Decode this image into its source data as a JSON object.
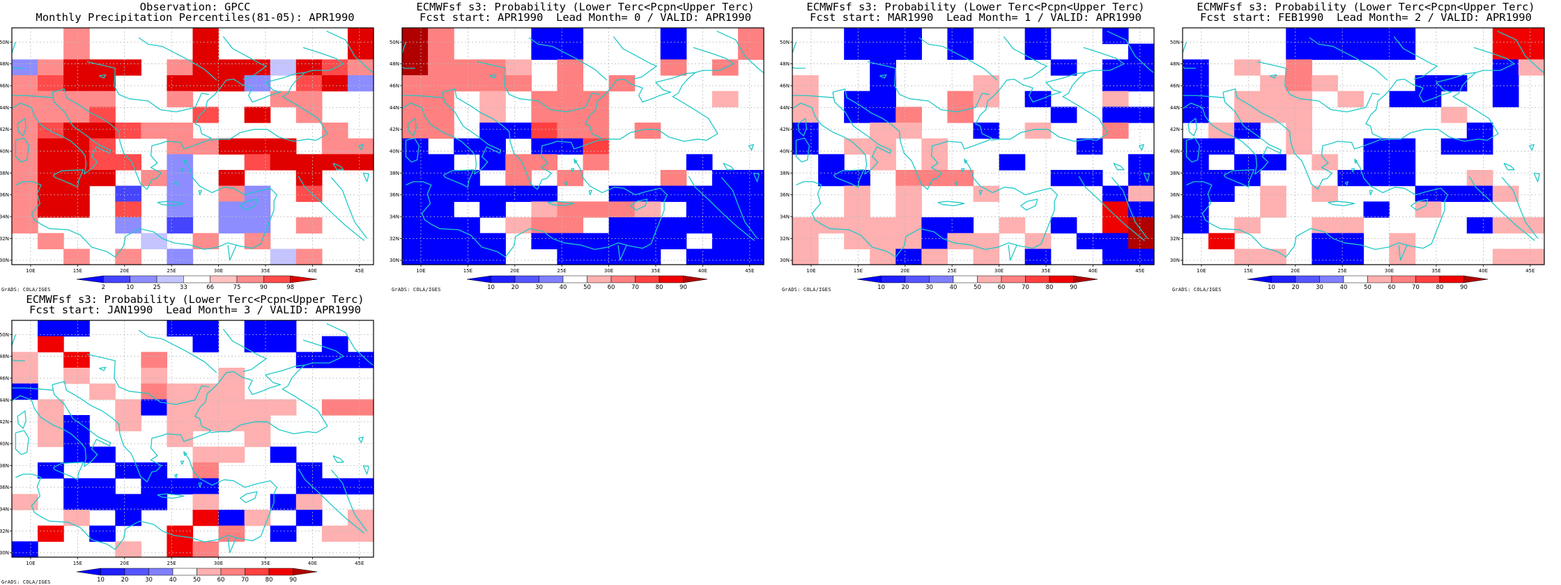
{
  "panels": [
    {
      "title1": "Observation: GPCC",
      "title2": "Monthly Precipitation Percentiles(81-05): APR1990",
      "footer": "GrADS: COLA/IGES",
      "colorbar": {
        "labels": [
          "2",
          "10",
          "25",
          "33",
          "66",
          "75",
          "90",
          "98"
        ],
        "colors": [
          "#0b0bff",
          "#4545ff",
          "#8d8dff",
          "#c4c4ff",
          "#ffffff",
          "#ffc2c2",
          "#ff8c8c",
          "#ff4b4b",
          "#e00000"
        ]
      },
      "grid_pattern": [
        "..4....6.....6",
        "..4....6.....6",
        "34666.4667a654",
        "4566..667b.563",
        "4444..4...44..",
        "4445...5.6.4..",
        "4566544.....4.",
        "4665..44766.44",
        "46655.3..56666",
        "4666.43.6..6..",
        "466.2.b.43.5..",
        "466.5.3.33....",
        "4...b.c.33.4..",
        ".4...a.4.4....",
        "..4.4.b...a4..."
      ]
    },
    {
      "title1": "ECMWFsf s3: Probability (Lower Terc<Pcpn<Upper Terc)",
      "title2": "Fcst start: APR1990  Lead Month= 0 / VALID: APR1990",
      "footer": "GrADS: COLA/IGES",
      "colorbar": {
        "labels": [
          "10",
          "20",
          "30",
          "40",
          "50",
          "60",
          "70",
          "80",
          "90"
        ],
        "colors": [
          "#0000ff",
          "#2020ff",
          "#5555ff",
          "#8080ff",
          "#ffffff",
          "#ffb0b0",
          "#ff8080",
          "#ff4040",
          "#f00000",
          "#b00000"
        ]
      },
      "grid_pattern": [
        "b4...aa...a..4",
        "b4...aa...a..4",
        "74443.4...4.4.",
        "44444.4.4.....",
        "44.3.444....3.",
        "44.3.444......",
        "44.aa544.4....",
        "a.aa.aa5......",
        "aa.a44.4...a..",
        "aaa.4.4...4.aa",
        "aaaaaa..aaaaaa",
        "aa.a.34443.aaa",
        "aaa.344.aaaaaa",
        "aaaa.aaaaaa.aa",
        "aaaa..aaaa.aaa"
      ]
    },
    {
      "title1": "ECMWFsf s3: Probability (Lower Terc<Pcpn<Upper Terc)",
      "title2": "Fcst start: MAR1990  Lead Month= 1 / VALID: APR1990",
      "footer": "GrADS: COLA/IGES",
      "colorbar": {
        "labels": [
          "10",
          "20",
          "30",
          "40",
          "50",
          "60",
          "70",
          "80",
          "90"
        ],
        "colors": [
          "#0000ff",
          "#2020ff",
          "#5555ff",
          "#8080ff",
          "#ffffff",
          "#ffb0b0",
          "#ff8080",
          "#ff4040",
          "#f00000",
          "#b00000"
        ]
      },
      "grid_pattern": [
        "..aaa.a..a..a.",
        "..aaa.a..a...a",
        "...a......a.aa",
        "3..a...3....aa",
        "3.aa..43.a..3.",
        "3.aa4.4...a.aa",
        "a..33..a.3..4.",
        "a.33.3.....a..",
        ".a.3.3..a....a",
        ".aa.444...aa.a",
        "..3.3..3....a3",
        "..3.3.......6a",
        "33333aa.3.a.6c",
        "3.333a33.3.aac",
        "3..3a3.3.a..aa"
      ]
    },
    {
      "title1": "ECMWFsf s3: Probability (Lower Terc<Pcpn<Upper Terc)",
      "title2": "Fcst start: FEB1990  Lead Month= 2 / VALID: APR1990",
      "footer": "GrADS: COLA/IGES",
      "colorbar": {
        "labels": [
          "10",
          "20",
          "30",
          "40",
          "50",
          "60",
          "70",
          "80",
          "90"
        ],
        "colors": [
          "#0000ff",
          "#2020ff",
          "#5555ff",
          "#8080ff",
          "#ffffff",
          "#ffb0b0",
          "#ff8080",
          "#ff4040",
          "#f00000",
          "#b00000"
        ]
      },
      "grid_pattern": [
        "....aaaaa...66",
        "....aaaaa...66",
        "a.3.4.......a3",
        "a..343...aa.a.",
        "a.333.3.aa..a.",
        "a.333.....3...",
        ".3a.3......a..",
        "aa..3..aa.aa..",
        "a.aa.3.aa.....",
        "aaa...aaa..3..",
        "aa.3.3...aaa3.",
        "a..3...a.3....",
        "a.3..33....a33",
        ".6...aa.3.....",
        "..33.aa.3...33"
      ]
    },
    {
      "title1": "ECMWFsf s3: Probability (Lower Terc<Pcpn<Upper Terc)",
      "title2": "Fcst start: JAN1990  Lead Month= 3 / VALID: APR1990",
      "footer": "GrADS: COLA/IGES",
      "colorbar": {
        "labels": [
          "10",
          "20",
          "30",
          "40",
          "50",
          "60",
          "70",
          "80",
          "90"
        ],
        "colors": [
          "#0000ff",
          "#2020ff",
          "#5555ff",
          "#8080ff",
          "#ffffff",
          "#ffb0b0",
          "#ff8080",
          "#ff4040",
          "#f00000",
          "#b00000"
        ]
      },
      "grid_pattern": [
        ".aa...aa.aa...",
        ".6.....a.aa.a.",
        "3.6..4.....aaa",
        "3.3..3..3.....",
        "a..3.4333.....",
        ".3..3a33333.44",
        ".3a.3.3333....",
        ".3a...3..3....",
        "..aa...33.a...",
        ".a..aa.4...a..",
        "..aa.aaa...aaa",
        "3.aaaa.3..a3..",
        "..3.a..6a3.a.3",
        ".6.a..6.4.a.33",
        "a...3.64......"
      ]
    }
  ],
  "lon_ticks": [
    "10E",
    "15E",
    "20E",
    "25E",
    "30E",
    "35E",
    "40E",
    "45E"
  ],
  "lat_ticks": [
    "50N",
    "48N",
    "46N",
    "44N",
    "42N",
    "40N",
    "38N",
    "36N",
    "34N",
    "32N",
    "30N"
  ],
  "style": {
    "coast": "#1fc8c8",
    "grid": "#bcbcbc"
  }
}
